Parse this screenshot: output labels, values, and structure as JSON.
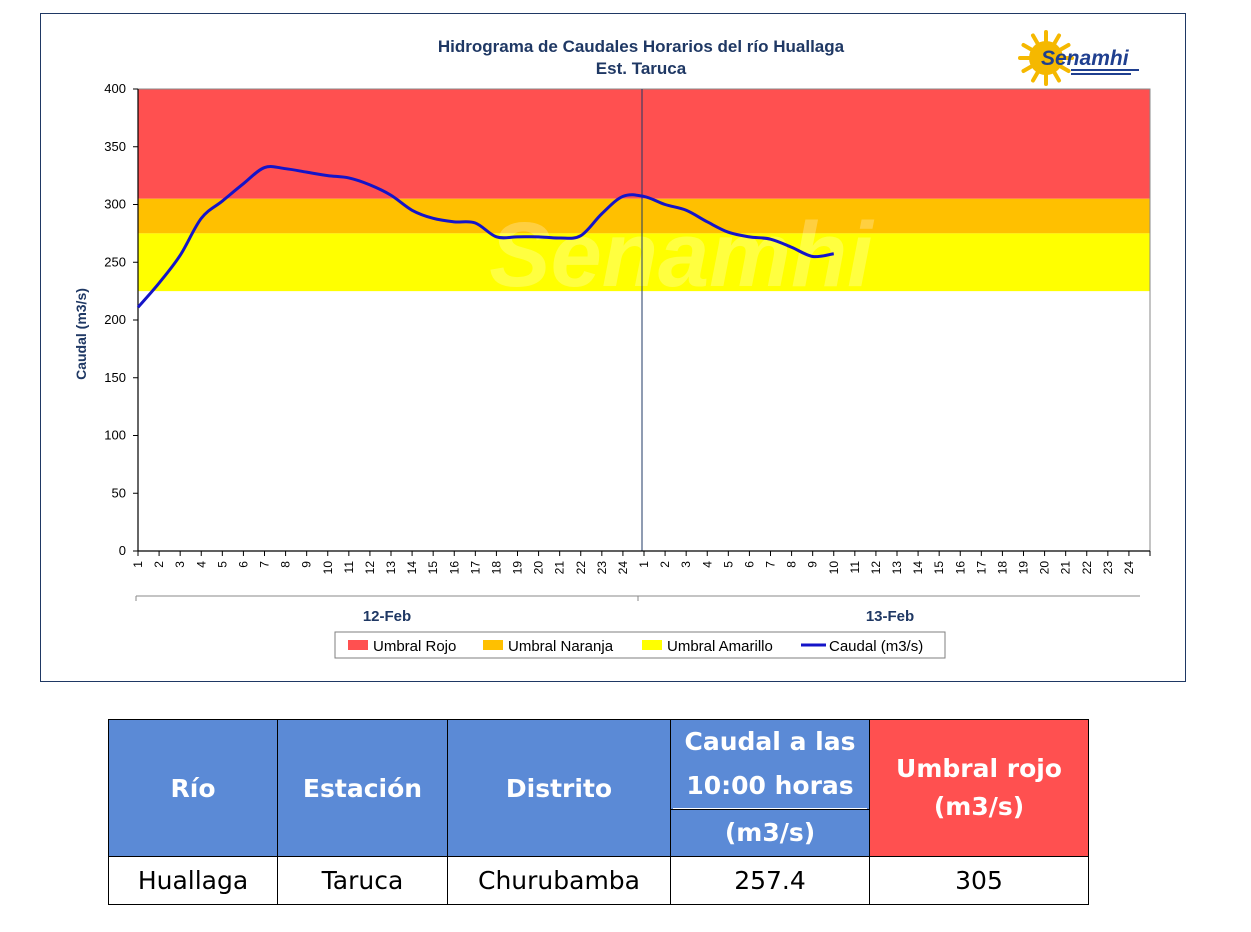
{
  "chart_data": {
    "type": "line",
    "title": "Hidrograma de Caudales Horarios del río Huallaga",
    "subtitle": "Est. Taruca",
    "logo_text": "Senamhi",
    "ylabel": "Caudal  (m3/s)",
    "ylim": [
      0,
      400
    ],
    "yticks": [
      0,
      50,
      100,
      150,
      200,
      250,
      300,
      350,
      400
    ],
    "day_labels": [
      "12-Feb",
      "13-Feb"
    ],
    "x_tick_labels": [
      "1",
      "2",
      "3",
      "4",
      "5",
      "6",
      "7",
      "8",
      "9",
      "10",
      "11",
      "12",
      "13",
      "14",
      "15",
      "16",
      "17",
      "18",
      "19",
      "20",
      "21",
      "22",
      "23",
      "24",
      "1",
      "2",
      "3",
      "4",
      "5",
      "6",
      "7",
      "8",
      "9",
      "10",
      "11",
      "12",
      "13",
      "14",
      "15",
      "16",
      "17",
      "18",
      "19",
      "20",
      "21",
      "22",
      "23",
      "24"
    ],
    "thresholds": [
      {
        "name": "Umbral Rojo",
        "from": 305,
        "to": 400,
        "color": "#ff5050"
      },
      {
        "name": "Umbral Naranja",
        "from": 275,
        "to": 305,
        "color": "#ffc000"
      },
      {
        "name": "Umbral Amarillo",
        "from": 225,
        "to": 275,
        "color": "#ffff00"
      }
    ],
    "series": [
      {
        "name": "Caudal (m3/s)",
        "color": "#1414c8",
        "x": [
          1,
          2,
          3,
          4,
          5,
          6,
          7,
          8,
          9,
          10,
          11,
          12,
          13,
          14,
          15,
          16,
          17,
          18,
          19,
          20,
          21,
          22,
          23,
          24,
          25,
          26,
          27,
          28,
          29,
          30,
          31,
          32,
          33,
          34
        ],
        "values": [
          211,
          232,
          256,
          288,
          303,
          318,
          332,
          331,
          328,
          325,
          323,
          317,
          308,
          295,
          288,
          285,
          284,
          272,
          272,
          272,
          271,
          273,
          292,
          307,
          307,
          300,
          295,
          285,
          276,
          272,
          270,
          263,
          255,
          257.4
        ]
      }
    ],
    "legend": {
      "position": "bottom",
      "entries": [
        "Umbral Rojo",
        "Umbral Naranja",
        "Umbral Amarillo",
        "Caudal (m3/s)"
      ]
    }
  },
  "table": {
    "headers": {
      "rio": "Río",
      "estacion": "Estación",
      "distrito": "Distrito",
      "caudal_line1": "Caudal a las",
      "caudal_line2": "10:00 horas",
      "caudal_line3": "(m3/s)",
      "umbral_line1": "Umbral rojo",
      "umbral_line2": "(m3/s)"
    },
    "row": {
      "rio": "Huallaga",
      "estacion": "Taruca",
      "distrito": "Churubamba",
      "caudal": "257.4",
      "umbral": "305"
    },
    "colors": {
      "header_blue": "#5b8ad6",
      "header_red": "#ff5050"
    }
  }
}
